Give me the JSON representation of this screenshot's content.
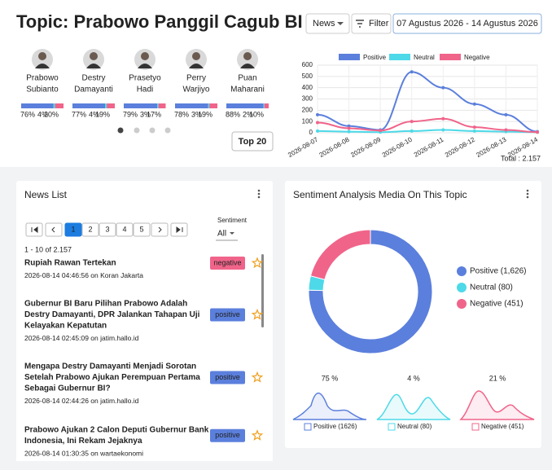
{
  "header": {
    "title": "Topic: Prabowo Panggil Cagub BI",
    "news_button": "News",
    "filter_button": "Filter",
    "date_range": "07 Agustus 2026 - 14 Agustus 2026"
  },
  "candidates": [
    {
      "name_lines": [
        "Prabowo",
        "Subianto"
      ],
      "values": [
        76,
        4,
        20
      ],
      "value_labels": [
        "76%",
        "4%",
        "20%"
      ]
    },
    {
      "name_lines": [
        "Destry",
        "Damayanti"
      ],
      "values": [
        77,
        4,
        19
      ],
      "value_labels": [
        "77%",
        "4%",
        "19%"
      ]
    },
    {
      "name_lines": [
        "Prasetyo",
        "Hadi"
      ],
      "values": [
        79,
        3,
        17
      ],
      "value_labels": [
        "79%",
        "3%",
        "17%"
      ]
    },
    {
      "name_lines": [
        "Perry",
        "Warjiyo"
      ],
      "values": [
        78,
        3,
        19
      ],
      "value_labels": [
        "78%",
        "3%",
        "19%"
      ]
    },
    {
      "name_lines": [
        "Puan",
        "Maharani"
      ],
      "values": [
        88,
        2,
        10
      ],
      "value_labels": [
        "88%",
        "2%",
        "10%"
      ]
    }
  ],
  "top_button": "Top 20",
  "chart_data": [
    {
      "type": "line",
      "x": [
        "2026-08-07",
        "2026-08-08",
        "2026-08-09",
        "2026-08-10",
        "2026-08-11",
        "2026-08-12",
        "2026-08-13",
        "2026-08-14"
      ],
      "series": [
        {
          "name": "Positive",
          "color": "#5b7fdc",
          "values": [
            160,
            60,
            25,
            540,
            400,
            255,
            160,
            10
          ]
        },
        {
          "name": "Neutral",
          "color": "#4dd9e8",
          "values": [
            15,
            10,
            5,
            15,
            25,
            15,
            10,
            5
          ]
        },
        {
          "name": "Negative",
          "color": "#f0648a",
          "values": [
            90,
            40,
            20,
            100,
            125,
            50,
            25,
            5
          ]
        }
      ],
      "ylim": [
        0,
        600
      ],
      "yticks": [
        0,
        100,
        200,
        300,
        400,
        500,
        600
      ],
      "grid": true,
      "legend": "top",
      "annotation": "Total : 2.157"
    },
    {
      "type": "pie",
      "title": "Sentiment Analysis Media On This Topic",
      "categories": [
        "Positive (1,626)",
        "Neutral (80)",
        "Negative (451)"
      ],
      "values": [
        1626,
        80,
        451
      ],
      "colors": [
        "#5b7fdc",
        "#4dd9e8",
        "#f0648a"
      ],
      "legend": "right"
    }
  ],
  "sparklines": [
    {
      "label": "75 %",
      "legend": "Positive (1626)"
    },
    {
      "label": "4 %",
      "legend": "Neutral (80)"
    },
    {
      "label": "21 %",
      "legend": "Negative (451)"
    }
  ],
  "news_list": {
    "title": "News List",
    "pages": [
      "1",
      "2",
      "3",
      "4",
      "5"
    ],
    "sentiment_label": "Sentiment",
    "sentiment_value": "All",
    "count": "1 - 10 of 2.157",
    "items": [
      {
        "title_lines": [
          "Rupiah Rawan Tertekan"
        ],
        "meta": "2026-08-14 04:46:56 on Koran Jakarta",
        "sentiment": "negative"
      },
      {
        "title_lines": [
          "Gubernur BI Baru Pilihan Prabowo Adalah",
          "Destry Damayanti, DPR Jalankan Tahapan Uji",
          "Kelayakan Kepatutan"
        ],
        "meta": "2026-08-14 02:45:09 on jatim.hallo.id",
        "sentiment": "positive"
      },
      {
        "title_lines": [
          "Mengapa Destry Damayanti Menjadi Sorotan",
          "Setelah Prabowo Ajukan Perempuan Pertama",
          "Sebagai Gubernur BI?"
        ],
        "meta": "2026-08-14 02:44:26 on jatim.hallo.id",
        "sentiment": "positive"
      },
      {
        "title_lines": [
          "Prabowo Ajukan 2 Calon Deputi Gubernur Bank",
          "Indonesia, Ini Rekam Jejaknya"
        ],
        "meta": "2026-08-14 01:30:35 on wartaekonomi",
        "sentiment": "positive"
      }
    ]
  }
}
